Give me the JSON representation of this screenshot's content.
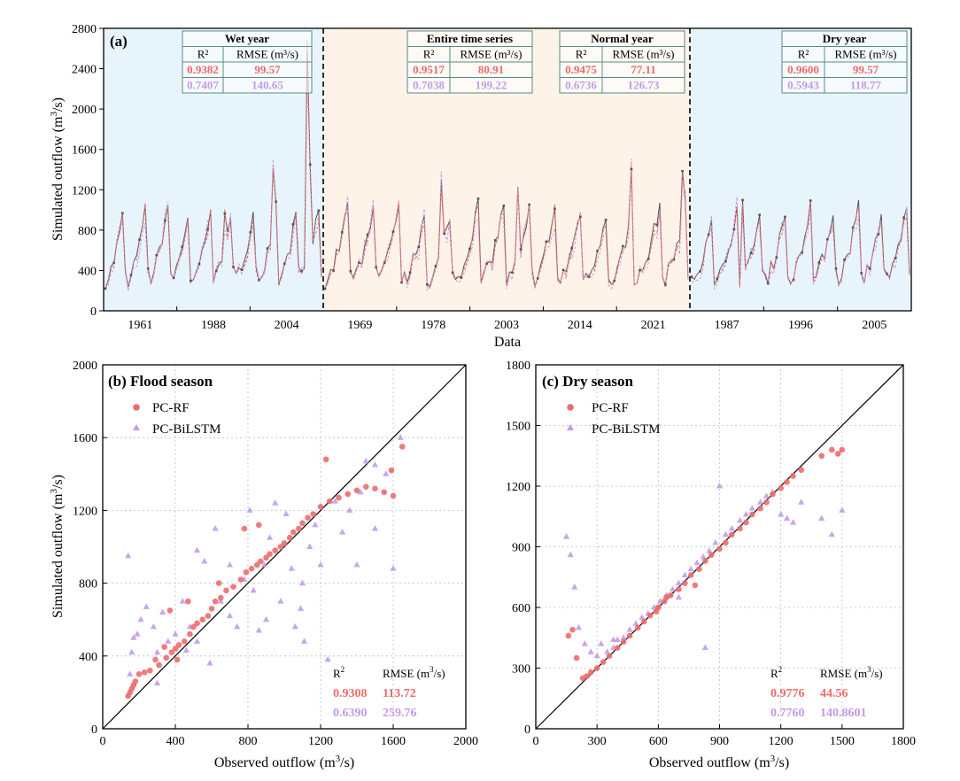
{
  "colors": {
    "rf": "#ee6b6b",
    "bilstm": "#c39be8",
    "observed": "#555555",
    "wet_bg": "#e8f4fb",
    "normal_bg": "#fdf3e8",
    "dry_bg": "#e8f4fb",
    "table_border": "#5a8a8a"
  },
  "chart_data": [
    {
      "panel": "(a)",
      "type": "line",
      "xlabel": "Data",
      "ylabel": "Simulated outflow (m³/s)",
      "ylim": [
        0,
        2800
      ],
      "yticks": [
        0,
        400,
        800,
        1200,
        1600,
        2000,
        2400,
        2800
      ],
      "grid": false,
      "segments": [
        {
          "name": "Wet year",
          "ticks": [
            "1961",
            "1988",
            "2004"
          ],
          "background": "wet_bg"
        },
        {
          "name": "Normal year",
          "ticks": [
            "1969",
            "1978",
            "2003",
            "2014",
            "2021"
          ],
          "background": "normal_bg"
        },
        {
          "name": "Dry year",
          "ticks": [
            "1987",
            "1996",
            "2005"
          ],
          "background": "dry_bg"
        }
      ],
      "stats_tables": [
        {
          "title": "Wet year",
          "col1": "R²",
          "col2": "RMSE (m³/s)",
          "rows": [
            [
              "0.9382",
              "99.57"
            ],
            [
              "0.7407",
              "140.65"
            ]
          ]
        },
        {
          "title": "Entire time series",
          "col1": "R²",
          "col2": "RMSE (m³/s)",
          "rows": [
            [
              "0.9517",
              "80.91"
            ],
            [
              "0.7038",
              "199.22"
            ]
          ]
        },
        {
          "title": "Normal year",
          "col1": "R²",
          "col2": "RMSE (m³/s)",
          "rows": [
            [
              "0.9475",
              "77.11"
            ],
            [
              "0.6736",
              "126.73"
            ]
          ]
        },
        {
          "title": "Dry year",
          "col1": "R²",
          "col2": "RMSE (m³/s)",
          "rows": [
            [
              "0.9600",
              "99.57"
            ],
            [
              "0.5943",
              "118.77"
            ]
          ]
        }
      ],
      "series_count": 3
    },
    {
      "panel": "(b)",
      "title": "(b) Flood season",
      "type": "scatter",
      "xlabel": "Observed outflow (m³/s)",
      "ylabel": "Simulated outflow (m³/s)",
      "xlim": [
        0,
        2000
      ],
      "ylim": [
        0,
        2000
      ],
      "xticks": [
        0,
        400,
        800,
        1200,
        1600,
        2000
      ],
      "yticks": [
        0,
        400,
        800,
        1200,
        1600,
        2000
      ],
      "grid": true,
      "legend_position": "top-left",
      "series": [
        {
          "name": "PC-RF",
          "marker": "circle",
          "color": "#ee6b6b",
          "points": [
            [
              140,
              180
            ],
            [
              150,
              200
            ],
            [
              160,
              220
            ],
            [
              170,
              240
            ],
            [
              180,
              260
            ],
            [
              200,
              300
            ],
            [
              230,
              310
            ],
            [
              260,
              320
            ],
            [
              290,
              380
            ],
            [
              310,
              350
            ],
            [
              350,
              390
            ],
            [
              380,
              420
            ],
            [
              400,
              440
            ],
            [
              420,
              460
            ],
            [
              450,
              480
            ],
            [
              480,
              520
            ],
            [
              500,
              560
            ],
            [
              520,
              580
            ],
            [
              550,
              600
            ],
            [
              580,
              620
            ],
            [
              600,
              660
            ],
            [
              620,
              700
            ],
            [
              650,
              720
            ],
            [
              680,
              760
            ],
            [
              720,
              780
            ],
            [
              760,
              820
            ],
            [
              790,
              860
            ],
            [
              820,
              880
            ],
            [
              850,
              900
            ],
            [
              870,
              920
            ],
            [
              900,
              940
            ],
            [
              920,
              960
            ],
            [
              950,
              980
            ],
            [
              980,
              1000
            ],
            [
              1000,
              1020
            ],
            [
              1030,
              1050
            ],
            [
              1050,
              1080
            ],
            [
              1080,
              1100
            ],
            [
              1100,
              1130
            ],
            [
              1130,
              1160
            ],
            [
              1160,
              1180
            ],
            [
              1200,
              1220
            ],
            [
              1250,
              1250
            ],
            [
              1300,
              1270
            ],
            [
              1350,
              1290
            ],
            [
              1400,
              1310
            ],
            [
              1450,
              1330
            ],
            [
              1500,
              1320
            ],
            [
              1550,
              1300
            ],
            [
              1600,
              1280
            ],
            [
              1650,
              1550
            ],
            [
              1230,
              1480
            ],
            [
              1590,
              1420
            ],
            [
              370,
              650
            ],
            [
              470,
              700
            ],
            [
              780,
              1100
            ],
            [
              640,
              800
            ],
            [
              340,
              450
            ],
            [
              410,
              380
            ],
            [
              860,
              1120
            ]
          ]
        },
        {
          "name": "PC-BiLSTM",
          "marker": "triangle",
          "color": "#c39be8",
          "points": [
            [
              140,
              950
            ],
            [
              150,
              300
            ],
            [
              160,
              420
            ],
            [
              170,
              500
            ],
            [
              190,
              520
            ],
            [
              210,
              600
            ],
            [
              240,
              670
            ],
            [
              280,
              560
            ],
            [
              300,
              420
            ],
            [
              330,
              640
            ],
            [
              360,
              480
            ],
            [
              400,
              520
            ],
            [
              440,
              700
            ],
            [
              480,
              560
            ],
            [
              520,
              980
            ],
            [
              560,
              920
            ],
            [
              590,
              360
            ],
            [
              620,
              1100
            ],
            [
              650,
              700
            ],
            [
              700,
              620
            ],
            [
              740,
              560
            ],
            [
              780,
              820
            ],
            [
              810,
              1200
            ],
            [
              830,
              760
            ],
            [
              860,
              540
            ],
            [
              890,
              900
            ],
            [
              920,
              1050
            ],
            [
              950,
              1240
            ],
            [
              980,
              700
            ],
            [
              1010,
              1180
            ],
            [
              1040,
              880
            ],
            [
              1060,
              560
            ],
            [
              1090,
              660
            ],
            [
              1110,
              480
            ],
            [
              1140,
              1000
            ],
            [
              1170,
              1120
            ],
            [
              1200,
              900
            ],
            [
              1240,
              380
            ],
            [
              1280,
              1250
            ],
            [
              1320,
              1080
            ],
            [
              1360,
              1200
            ],
            [
              1400,
              900
            ],
            [
              1450,
              1470
            ],
            [
              1500,
              1100
            ],
            [
              1560,
              1400
            ],
            [
              1600,
              880
            ],
            [
              1640,
              1600
            ],
            [
              1100,
              800
            ],
            [
              900,
              600
            ],
            [
              700,
              900
            ],
            [
              520,
              480
            ],
            [
              300,
              250
            ],
            [
              1420,
              1300
            ],
            [
              1500,
              1450
            ],
            [
              460,
              430
            ]
          ]
        }
      ],
      "stats": {
        "col1": "R²",
        "col2": "RMSE (m³/s)",
        "rows": [
          [
            "0.9308",
            "113.72"
          ],
          [
            "0.6390",
            "259.76"
          ]
        ]
      }
    },
    {
      "panel": "(c)",
      "title": "(c) Dry season",
      "type": "scatter",
      "xlabel": "Observed outflow (m³/s)",
      "ylabel": "",
      "xlim": [
        0,
        1800
      ],
      "ylim": [
        0,
        1800
      ],
      "xticks": [
        0,
        300,
        600,
        900,
        1200,
        1500,
        1800
      ],
      "yticks": [
        0,
        300,
        600,
        900,
        1200,
        1500,
        1800
      ],
      "grid": true,
      "legend_position": "top-left",
      "series": [
        {
          "name": "PC-RF",
          "marker": "circle",
          "color": "#ee6b6b",
          "points": [
            [
              160,
              460
            ],
            [
              180,
              490
            ],
            [
              200,
              350
            ],
            [
              230,
              250
            ],
            [
              250,
              260
            ],
            [
              270,
              280
            ],
            [
              300,
              300
            ],
            [
              330,
              330
            ],
            [
              360,
              360
            ],
            [
              400,
              400
            ],
            [
              430,
              430
            ],
            [
              460,
              460
            ],
            [
              500,
              500
            ],
            [
              530,
              530
            ],
            [
              560,
              560
            ],
            [
              600,
              600
            ],
            [
              630,
              630
            ],
            [
              660,
              660
            ],
            [
              700,
              690
            ],
            [
              730,
              720
            ],
            [
              760,
              760
            ],
            [
              800,
              790
            ],
            [
              830,
              830
            ],
            [
              860,
              860
            ],
            [
              900,
              890
            ],
            [
              930,
              920
            ],
            [
              960,
              960
            ],
            [
              1000,
              990
            ],
            [
              1030,
              1020
            ],
            [
              1060,
              1060
            ],
            [
              1100,
              1090
            ],
            [
              1130,
              1120
            ],
            [
              1160,
              1160
            ],
            [
              1200,
              1190
            ],
            [
              1230,
              1220
            ],
            [
              1260,
              1250
            ],
            [
              1300,
              1280
            ],
            [
              1400,
              1350
            ],
            [
              1450,
              1380
            ],
            [
              1480,
              1360
            ],
            [
              1500,
              1380
            ],
            [
              590,
              580
            ],
            [
              780,
              710
            ],
            [
              640,
              650
            ]
          ]
        },
        {
          "name": "PC-BiLSTM",
          "marker": "triangle",
          "color": "#c39be8",
          "points": [
            [
              150,
              950
            ],
            [
              170,
              860
            ],
            [
              190,
              700
            ],
            [
              210,
              500
            ],
            [
              240,
              420
            ],
            [
              270,
              380
            ],
            [
              300,
              360
            ],
            [
              320,
              420
            ],
            [
              350,
              380
            ],
            [
              380,
              400
            ],
            [
              400,
              440
            ],
            [
              430,
              450
            ],
            [
              460,
              490
            ],
            [
              490,
              520
            ],
            [
              520,
              550
            ],
            [
              550,
              570
            ],
            [
              580,
              600
            ],
            [
              610,
              630
            ],
            [
              640,
              660
            ],
            [
              670,
              690
            ],
            [
              700,
              720
            ],
            [
              730,
              760
            ],
            [
              760,
              790
            ],
            [
              790,
              820
            ],
            [
              820,
              850
            ],
            [
              850,
              880
            ],
            [
              880,
              920
            ],
            [
              900,
              1200
            ],
            [
              930,
              960
            ],
            [
              960,
              990
            ],
            [
              1000,
              1030
            ],
            [
              1030,
              1060
            ],
            [
              1060,
              1090
            ],
            [
              1100,
              1120
            ],
            [
              1130,
              1150
            ],
            [
              1160,
              1170
            ],
            [
              1200,
              1060
            ],
            [
              1230,
              1040
            ],
            [
              1260,
              1020
            ],
            [
              1300,
              1120
            ],
            [
              1400,
              1040
            ],
            [
              1450,
              960
            ],
            [
              1500,
              1080
            ],
            [
              830,
              400
            ],
            [
              700,
              650
            ],
            [
              380,
              440
            ]
          ]
        }
      ],
      "stats": {
        "col1": "R²",
        "col2": "RMSE (m³/s)",
        "rows": [
          [
            "0.9776",
            "44.56"
          ],
          [
            "0.7760",
            "140.8601"
          ]
        ]
      }
    }
  ]
}
